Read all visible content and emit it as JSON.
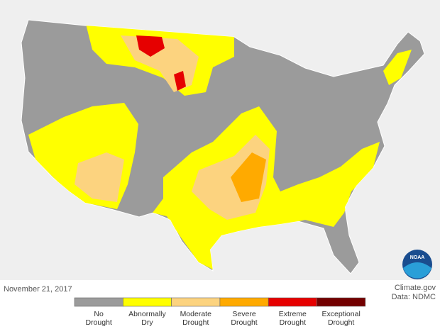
{
  "map": {
    "date": "November 21, 2017",
    "credit": "Climate.gov",
    "source": "Data: NDMC",
    "logo": "NOAA"
  },
  "legend": {
    "items": [
      {
        "label": [
          "No",
          "Drought"
        ],
        "color": "#9b9b9b"
      },
      {
        "label": [
          "Abnormally",
          "Dry"
        ],
        "color": "#ffff00"
      },
      {
        "label": [
          "Moderate",
          "Drought"
        ],
        "color": "#fcd37f"
      },
      {
        "label": [
          "Severe",
          "Drought"
        ],
        "color": "#ffaa00"
      },
      {
        "label": [
          "Extreme",
          "Drought"
        ],
        "color": "#e60000"
      },
      {
        "label": [
          "Exceptional",
          "Drought"
        ],
        "color": "#730000"
      }
    ]
  }
}
